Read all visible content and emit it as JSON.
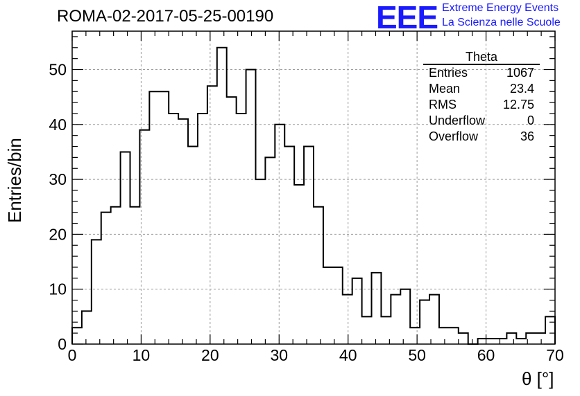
{
  "chart_data": {
    "type": "histogram",
    "title": "ROMA-02-2017-05-25-00190",
    "xlabel": "θ [°]",
    "ylabel": "Entries/bin",
    "xlim": [
      0,
      70
    ],
    "ylim": [
      0,
      57
    ],
    "bin_width": 1.4,
    "grid": true,
    "x_ticks": [
      0,
      10,
      20,
      30,
      40,
      50,
      60,
      70
    ],
    "y_ticks": [
      0,
      10,
      20,
      30,
      40,
      50
    ],
    "counts": [
      3,
      6,
      19,
      24,
      25,
      35,
      25,
      39,
      46,
      46,
      42,
      41,
      36,
      42,
      47,
      54,
      45,
      42,
      50,
      30,
      34,
      40,
      36,
      29,
      36,
      25,
      14,
      14,
      9,
      12,
      5,
      13,
      5,
      9,
      10,
      3,
      8,
      9,
      3,
      3,
      2,
      0,
      1,
      1,
      1,
      2,
      1,
      2,
      2,
      5
    ],
    "series": [
      {
        "name": "Theta"
      }
    ]
  },
  "stats": {
    "title": "Theta",
    "rows": [
      {
        "label": "Entries",
        "value": "1067"
      },
      {
        "label": "Mean",
        "value": "23.4"
      },
      {
        "label": "RMS",
        "value": "12.75"
      },
      {
        "label": "Underflow",
        "value": "0"
      },
      {
        "label": "Overflow",
        "value": "36"
      }
    ]
  },
  "logo": {
    "mark": "EEE",
    "line1": "Extreme Energy Events",
    "line2": "La Scienza nelle Scuole"
  },
  "colors": {
    "logo": "#1a1aff",
    "line": "#000000",
    "grid": "#9a9a9a"
  }
}
